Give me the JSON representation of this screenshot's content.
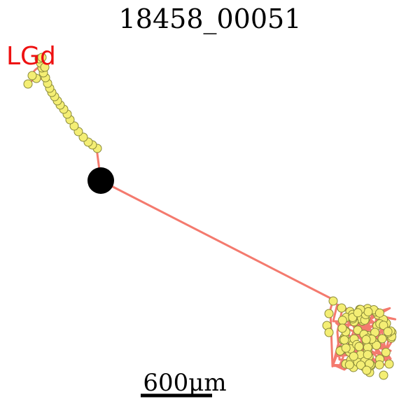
{
  "title": "18458_00051",
  "region_label": "LGd",
  "scale_bar": {
    "label": "600μm"
  },
  "colors": {
    "axon": "#f47a6e",
    "bouton_fill": "#f4ee74",
    "bouton_stroke": "#8a8a3a",
    "soma": "#000000",
    "region_label": "#ee1111"
  }
}
